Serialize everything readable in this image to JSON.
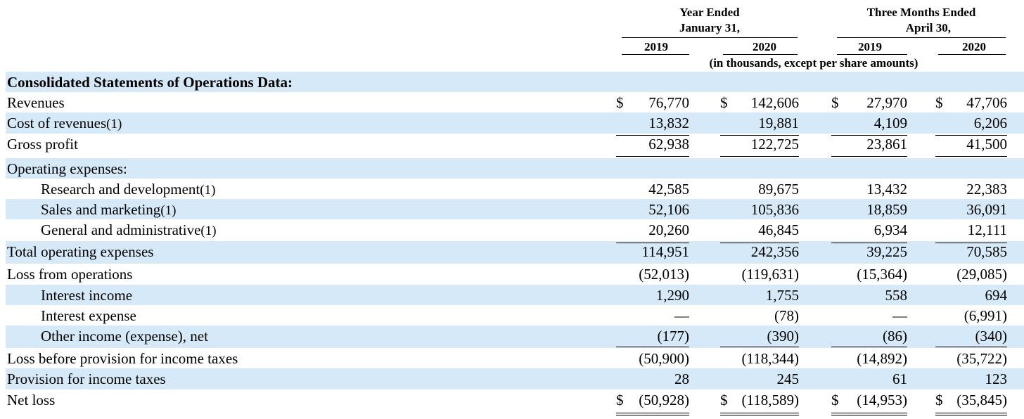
{
  "header": {
    "group1_line1": "Year Ended",
    "group1_line2": "January 31,",
    "group2_line1": "Three Months Ended",
    "group2_line2": "April 30,",
    "years": [
      "2019",
      "2020",
      "2019",
      "2020"
    ],
    "units": "(in thousands, except per share amounts)"
  },
  "section_title": "Consolidated Statements of Operations Data:",
  "rows": [
    {
      "label": "Revenues",
      "fn": "",
      "values": [
        "$",
        "76,770",
        "$",
        "142,606",
        "$",
        "27,970",
        "$",
        "47,706"
      ]
    },
    {
      "label": "Cost of revenues",
      "fn": "(1)",
      "values": [
        "",
        "13,832",
        "",
        "19,881",
        "",
        "4,109",
        "",
        "6,206"
      ]
    },
    {
      "label": "Gross profit",
      "fn": "",
      "values": [
        "",
        "62,938",
        "",
        "122,725",
        "",
        "23,861",
        "",
        "41,500"
      ]
    },
    {
      "label": "Operating expenses:",
      "fn": "",
      "values": [
        "",
        "",
        "",
        "",
        "",
        "",
        "",
        ""
      ]
    },
    {
      "label": "Research and development",
      "fn": "(1)",
      "values": [
        "",
        "42,585",
        "",
        "89,675",
        "",
        "13,432",
        "",
        "22,383"
      ]
    },
    {
      "label": "Sales and marketing",
      "fn": "(1)",
      "values": [
        "",
        "52,106",
        "",
        "105,836",
        "",
        "18,859",
        "",
        "36,091"
      ]
    },
    {
      "label": "General and administrative",
      "fn": "(1)",
      "values": [
        "",
        "20,260",
        "",
        "46,845",
        "",
        "6,934",
        "",
        "12,111"
      ]
    },
    {
      "label": "Total operating expenses",
      "fn": "",
      "values": [
        "",
        "114,951",
        "",
        "242,356",
        "",
        "39,225",
        "",
        "70,585"
      ]
    },
    {
      "label": "Loss from operations",
      "fn": "",
      "values": [
        "",
        "(52,013)",
        "",
        "(119,631)",
        "",
        "(15,364)",
        "",
        "(29,085)"
      ]
    },
    {
      "label": "Interest income",
      "fn": "",
      "values": [
        "",
        "1,290",
        "",
        "1,755",
        "",
        "558",
        "",
        "694"
      ]
    },
    {
      "label": "Interest expense",
      "fn": "",
      "values": [
        "",
        "—",
        "",
        "(78)",
        "",
        "—",
        "",
        "(6,991)"
      ]
    },
    {
      "label": "Other income (expense), net",
      "fn": "",
      "values": [
        "",
        "(177)",
        "",
        "(390)",
        "",
        "(86)",
        "",
        "(340)"
      ]
    },
    {
      "label": "Loss before provision for income taxes",
      "fn": "",
      "values": [
        "",
        "(50,900)",
        "",
        "(118,344)",
        "",
        "(14,892)",
        "",
        "(35,722)"
      ]
    },
    {
      "label": "Provision for income taxes",
      "fn": "",
      "values": [
        "",
        "28",
        "",
        "245",
        "",
        "61",
        "",
        "123"
      ]
    },
    {
      "label": "Net loss",
      "fn": "",
      "values": [
        "$",
        "(50,928)",
        "$",
        "(118,589)",
        "$",
        "(14,953)",
        "$",
        "(35,845)"
      ]
    }
  ],
  "colors": {
    "row_shade": "#d6e9f8"
  }
}
